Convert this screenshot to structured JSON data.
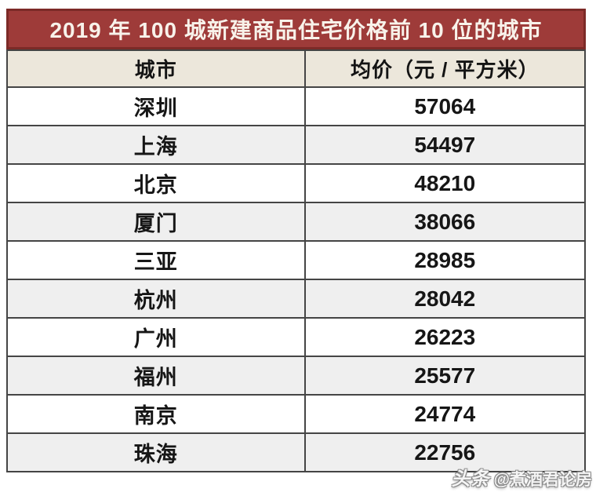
{
  "title": "2019 年 100 城新建商品住宅价格前 10 位的城市",
  "table": {
    "columns": [
      "城市",
      "均价（元 / 平方米）"
    ],
    "rows": [
      {
        "city": "深圳",
        "price": "57064"
      },
      {
        "city": "上海",
        "price": "54497"
      },
      {
        "city": "北京",
        "price": "48210"
      },
      {
        "city": "厦门",
        "price": "38066"
      },
      {
        "city": "三亚",
        "price": "28985"
      },
      {
        "city": "杭州",
        "price": "28042"
      },
      {
        "city": "广州",
        "price": "26223"
      },
      {
        "city": "福州",
        "price": "25577"
      },
      {
        "city": "南京",
        "price": "24774"
      },
      {
        "city": "珠海",
        "price": "22756"
      }
    ]
  },
  "watermark": {
    "brand": "头条",
    "handle": "@煮酒君论房"
  },
  "colors": {
    "title_bg": "#9e3b39",
    "title_border": "#7c2a27",
    "title_text": "#f8f2ea",
    "header_bg": "#ece7db",
    "row_alt_bg": "#efefef",
    "border": "#454545",
    "cell_text": "#161616"
  },
  "chart_data": {
    "type": "table",
    "title": "2019 年 100 城新建商品住宅价格前 10 位的城市",
    "columns": [
      "城市",
      "均价（元 / 平方米）"
    ],
    "categories": [
      "深圳",
      "上海",
      "北京",
      "厦门",
      "三亚",
      "杭州",
      "广州",
      "福州",
      "南京",
      "珠海"
    ],
    "values": [
      57064,
      54497,
      48210,
      38066,
      28985,
      28042,
      26223,
      25577,
      24774,
      22756
    ],
    "unit": "元/平方米",
    "layout_hints": {
      "striped_rows": true,
      "grid": true,
      "title_position": "top"
    }
  }
}
